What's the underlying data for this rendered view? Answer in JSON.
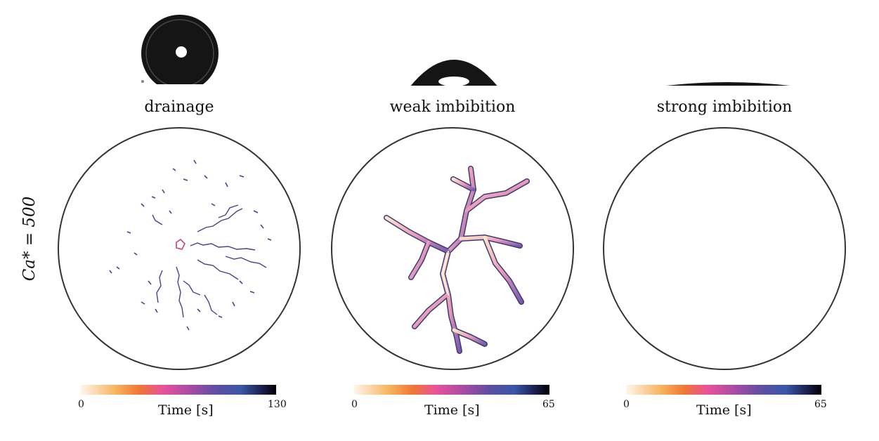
{
  "row_label": "Ca* = 500",
  "colorbar_colors": [
    "#fff3e6",
    "#f7b35e",
    "#f07634",
    "#e8529a",
    "#a84aa6",
    "#5b4fa3",
    "#3a56a8",
    "#1a1d4a",
    "#000000"
  ],
  "panels": [
    {
      "title": "drainage",
      "colorbar": {
        "label": "Time [s]",
        "min": "0",
        "max": "130"
      }
    },
    {
      "title": "weak imbibition",
      "colorbar": {
        "label": "Time [s]",
        "min": "0",
        "max": "65"
      }
    },
    {
      "title": "strong imbibition",
      "colorbar": {
        "label": "Time [s]",
        "min": "0",
        "max": "65"
      }
    }
  ]
}
